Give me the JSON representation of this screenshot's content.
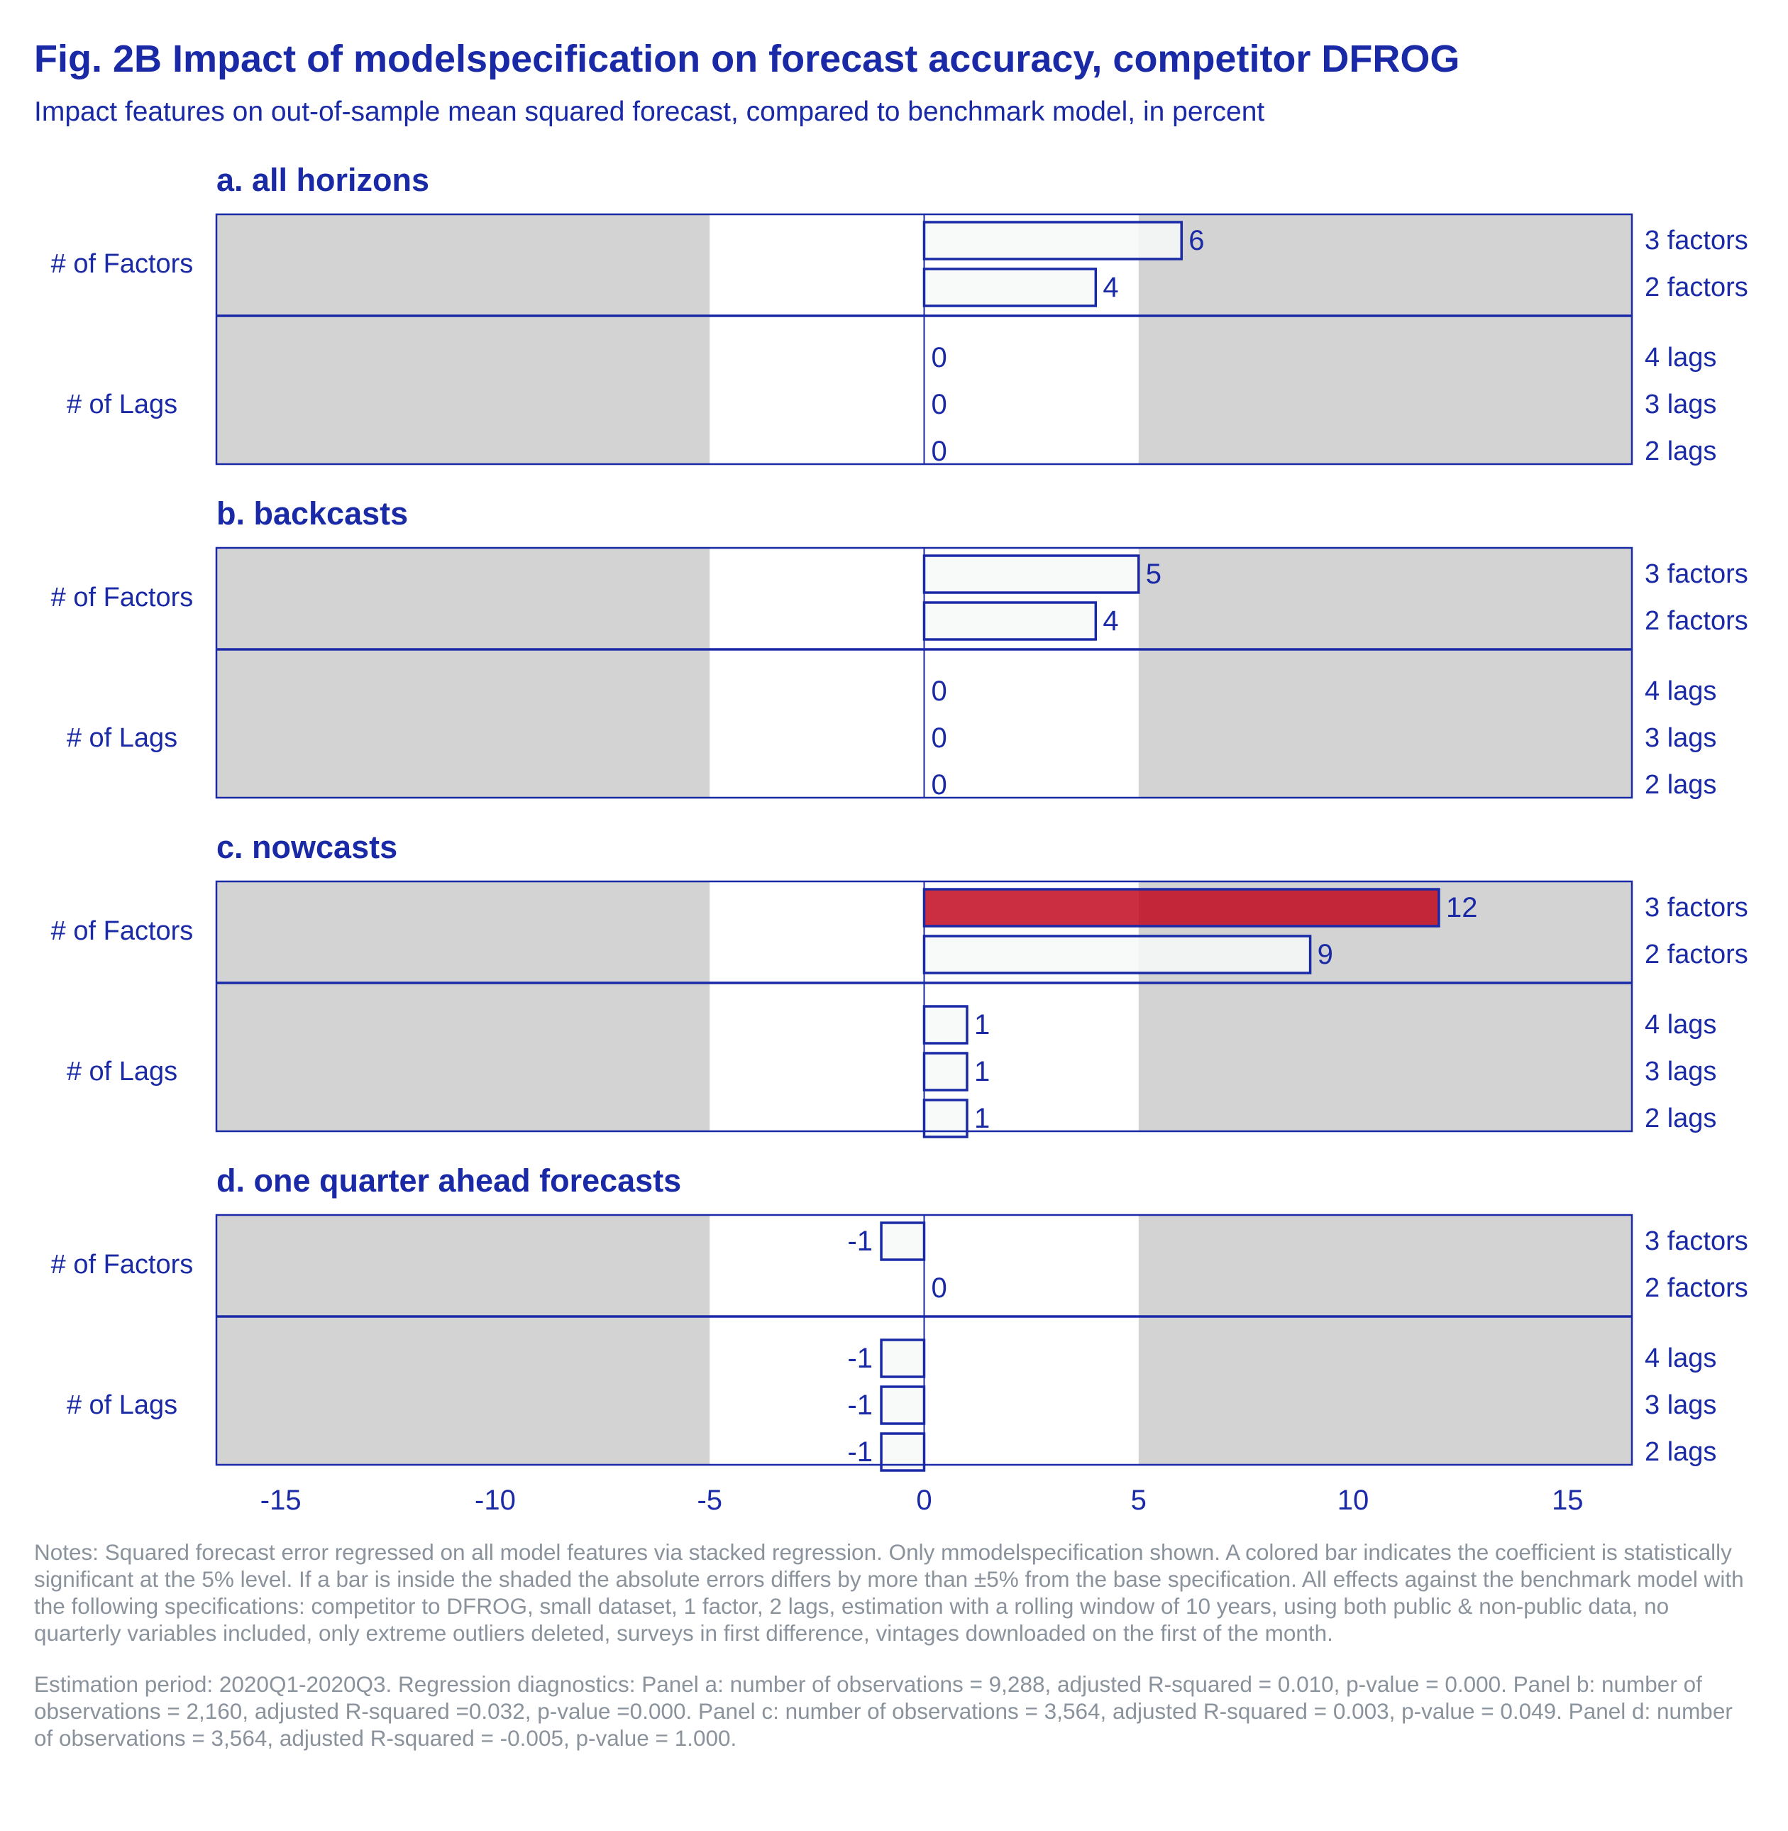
{
  "title": "Fig. 2B Impact of modelspecification on forecast accuracy, competitor DFROG",
  "subtitle": "Impact features on out-of-sample mean squared forecast, compared to benchmark model, in percent",
  "colors": {
    "text": "#1a2aa6",
    "axis": "#1a2aa6",
    "shade": "#d3d3d3",
    "bar_fill": "#f7f9f9",
    "significant_fill": "#c00016",
    "notes": "#8a929c"
  },
  "chart_data": {
    "type": "bar",
    "orientation": "horizontal",
    "xlim": [
      -16.5,
      16.5
    ],
    "xticks": [
      -15,
      -10,
      -5,
      0,
      5,
      10,
      15
    ],
    "shaded_regions": [
      [
        -16.5,
        -5
      ],
      [
        5,
        16.5
      ]
    ],
    "panels": [
      {
        "title": "a. all horizons",
        "groups": [
          {
            "label": "# of Factors",
            "bars": [
              {
                "label": "3 factors",
                "value": 6,
                "significant": false
              },
              {
                "label": "2 factors",
                "value": 4,
                "significant": false
              }
            ]
          },
          {
            "label": "# of Lags",
            "bars": [
              {
                "label": "4 lags",
                "value": 0,
                "significant": false
              },
              {
                "label": "3 lags",
                "value": 0,
                "significant": false
              },
              {
                "label": "2 lags",
                "value": 0,
                "significant": false
              }
            ]
          }
        ]
      },
      {
        "title": "b. backcasts",
        "groups": [
          {
            "label": "# of Factors",
            "bars": [
              {
                "label": "3 factors",
                "value": 5,
                "significant": false
              },
              {
                "label": "2 factors",
                "value": 4,
                "significant": false
              }
            ]
          },
          {
            "label": "# of Lags",
            "bars": [
              {
                "label": "4 lags",
                "value": 0,
                "significant": false
              },
              {
                "label": "3 lags",
                "value": 0,
                "significant": false
              },
              {
                "label": "2 lags",
                "value": 0,
                "significant": false
              }
            ]
          }
        ]
      },
      {
        "title": "c. nowcasts",
        "groups": [
          {
            "label": "# of Factors",
            "bars": [
              {
                "label": "3 factors",
                "value": 12,
                "significant": true
              },
              {
                "label": "2 factors",
                "value": 9,
                "significant": false
              }
            ]
          },
          {
            "label": "# of Lags",
            "bars": [
              {
                "label": "4 lags",
                "value": 1,
                "significant": false
              },
              {
                "label": "3 lags",
                "value": 1,
                "significant": false
              },
              {
                "label": "2 lags",
                "value": 1,
                "significant": false
              }
            ]
          }
        ]
      },
      {
        "title": "d. one quarter ahead forecasts",
        "groups": [
          {
            "label": "# of Factors",
            "bars": [
              {
                "label": "3 factors",
                "value": -1,
                "significant": false
              },
              {
                "label": "2 factors",
                "value": 0,
                "significant": false
              }
            ]
          },
          {
            "label": "# of Lags",
            "bars": [
              {
                "label": "4 lags",
                "value": -1,
                "significant": false
              },
              {
                "label": "3 lags",
                "value": -1,
                "significant": false
              },
              {
                "label": "2 lags",
                "value": -1,
                "significant": false
              }
            ]
          }
        ]
      }
    ]
  },
  "notes": {
    "paragraph1": "Notes: Squared forecast error regressed on all model features via stacked regression. Only mmodelspecification shown. A colored bar indicates the coefficient is statistically significant at the 5% level. If a bar is inside the shaded the absolute errors differs by more than ±5% from the base specification. All effects against the benchmark model with the following specifications: competitor to DFROG, small dataset, 1 factor, 2 lags, estimation with a rolling window of 10 years, using both public & non-public data, no quarterly variables included, only extreme outliers deleted, surveys in first difference, vintages downloaded on the first of the month.",
    "paragraph2": " Estimation period: 2020Q1-2020Q3. Regression diagnostics: Panel a: number of observations = 9,288, adjusted R-squared = 0.010, p-value = 0.000. Panel b: number of observations = 2,160, adjusted R-squared =0.032, p-value =0.000. Panel c: number of observations = 3,564, adjusted R-squared = 0.003, p-value = 0.049. Panel d: number of observations = 3,564, adjusted R-squared = -0.005, p-value = 1.000."
  }
}
